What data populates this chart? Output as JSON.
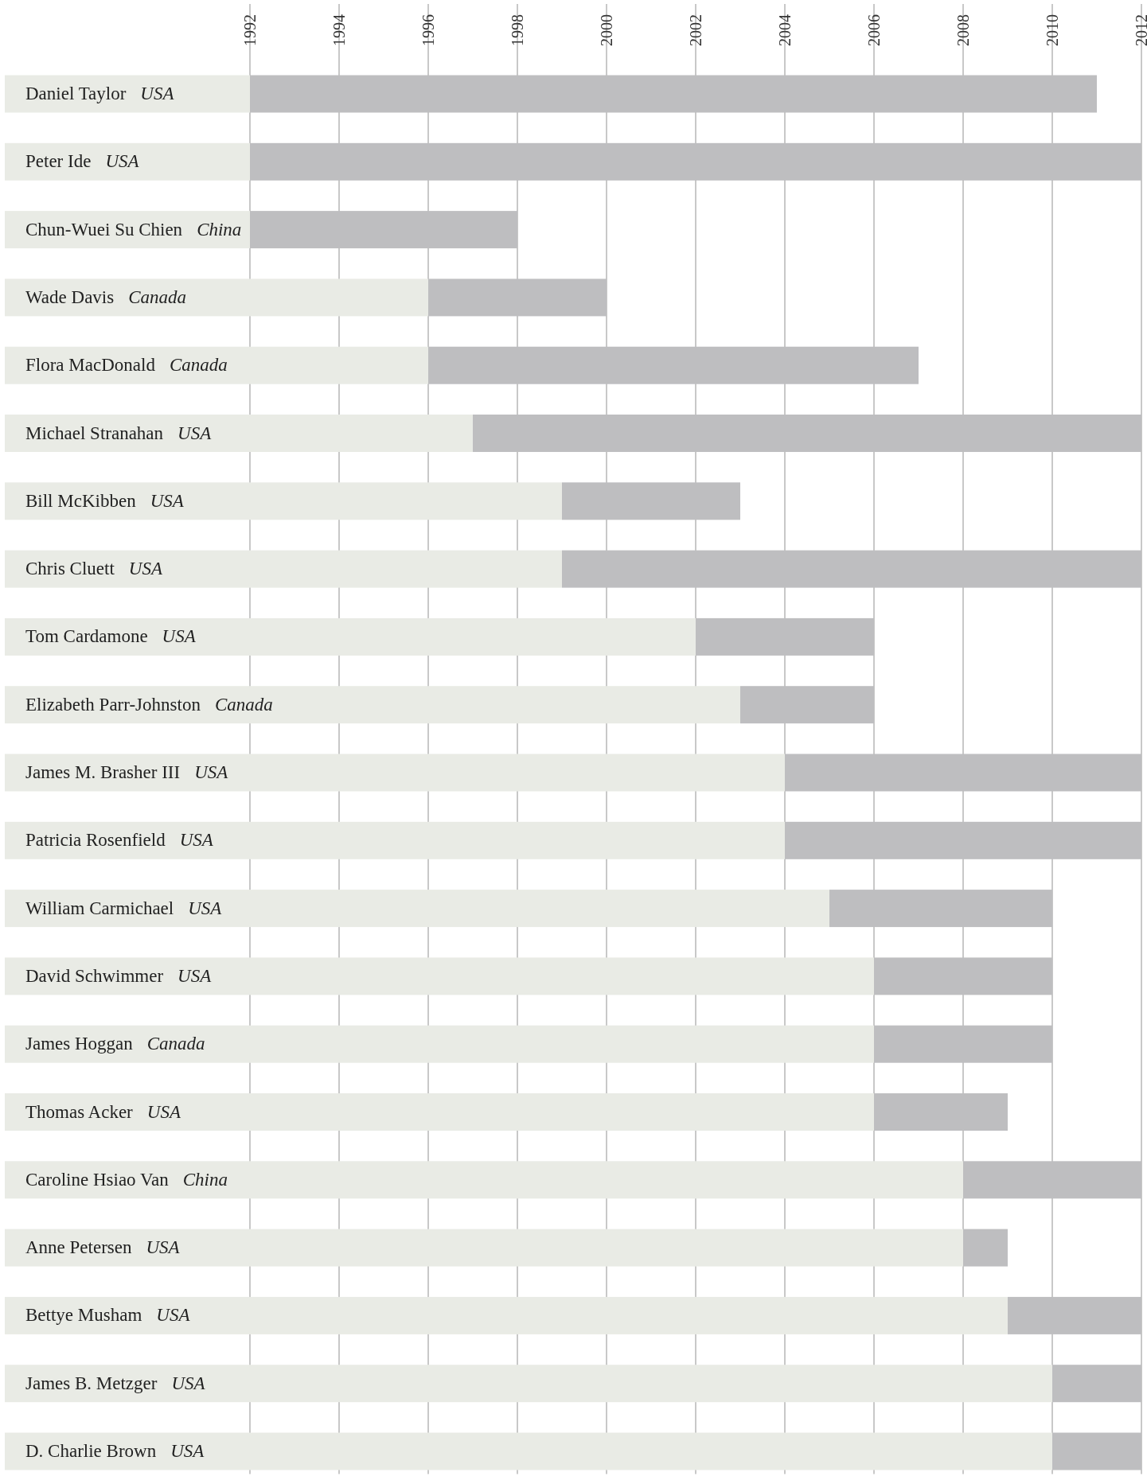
{
  "chart_data": {
    "type": "bar",
    "orientation": "horizontal",
    "categories": [
      "Daniel Taylor USA",
      "Peter Ide USA",
      "Chun-Wuei Su Chien China",
      "Wade Davis Canada",
      "Flora MacDonald Canada",
      "Michael Stranahan USA",
      "Bill McKibben USA",
      "Chris Cluett USA",
      "Tom Cardamone USA",
      "Elizabeth Parr-Johnston Canada",
      "James M. Brasher III USA",
      "Patricia Rosenfield USA",
      "William Carmichael USA",
      "David Schwimmer USA",
      "James Hoggan Canada",
      "Thomas Acker USA",
      "Caroline Hsiao Van China",
      "Anne Petersen USA",
      "Bettye Musham USA",
      "James B. Metzger USA",
      "D. Charlie Brown USA"
    ],
    "series": [
      {
        "color": "#e9ebe5",
        "base": [
          1986.5,
          1986.5,
          1986.5,
          1986.5,
          1986.5,
          1986.5,
          1986.5,
          1986.5,
          1986.5,
          1986.5,
          1986.5,
          1986.5,
          1986.5,
          1986.5,
          1986.5,
          1986.5,
          1986.5,
          1986.5,
          1986.5,
          1986.5,
          1986.5
        ],
        "values": [
          5.5,
          5.5,
          5.5,
          9.5,
          9.5,
          10.5,
          12.5,
          12.5,
          15.5,
          16.5,
          17.5,
          17.5,
          18.5,
          19.5,
          19.5,
          19.5,
          21.5,
          21.5,
          22.5,
          23.5,
          23.5
        ]
      },
      {
        "color": "#bebec0",
        "base": [
          1992,
          1992,
          1992,
          1996,
          1996,
          1997,
          1999,
          1999,
          2002,
          2003,
          2004,
          2004,
          2005,
          2006,
          2006,
          2006,
          2008,
          2008,
          2009,
          2010,
          2010
        ],
        "values": [
          19,
          20,
          6,
          4,
          11,
          15,
          4,
          13,
          4,
          3,
          8,
          8,
          5,
          4,
          4,
          3,
          4,
          1,
          3,
          2,
          2
        ]
      }
    ],
    "xlim": [
      1986.5,
      2012
    ],
    "xticks": [
      1992,
      1994,
      1996,
      1998,
      2000,
      2002,
      2004,
      2006,
      2008,
      2010,
      2012
    ],
    "grid": "x"
  }
}
